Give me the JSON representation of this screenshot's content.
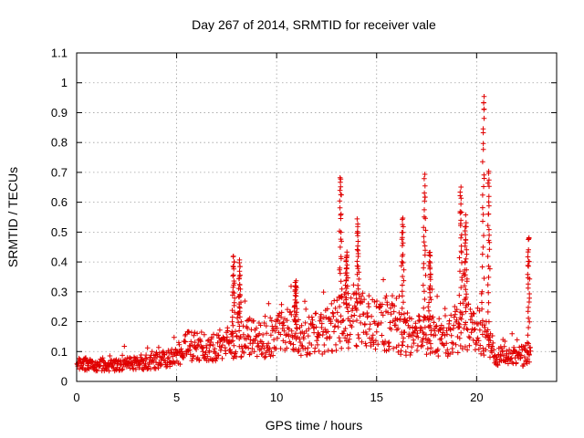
{
  "chart_data": {
    "type": "scatter",
    "title": "Day 267 of 2014, SRMTID for receiver vale",
    "xlabel": "GPS time / hours",
    "ylabel": "SRMTID / TECUs",
    "xlim": [
      0,
      24
    ],
    "ylim": [
      0,
      1.1
    ],
    "xticks": [
      0,
      5,
      10,
      15,
      20
    ],
    "xtick_labels": [
      "0",
      "5",
      "10",
      "15",
      "20"
    ],
    "yticks": [
      0,
      0.1,
      0.2,
      0.3,
      0.4,
      0.5,
      0.6,
      0.7,
      0.8,
      0.9,
      1,
      1.1
    ],
    "ytick_labels": [
      "0",
      "0.1",
      "0.2",
      "0.3",
      "0.4",
      "0.5",
      "0.6",
      "0.7",
      "0.8",
      "0.9",
      "1",
      "1.1"
    ],
    "grid": true,
    "marker": "plus",
    "marker_color": "#e00000",
    "series": [
      {
        "name": "SRMTID",
        "baseline_profile": [
          [
            0.0,
            0.06
          ],
          [
            1.0,
            0.055
          ],
          [
            2.0,
            0.055
          ],
          [
            3.0,
            0.06
          ],
          [
            4.0,
            0.07
          ],
          [
            5.0,
            0.08
          ],
          [
            5.5,
            0.12
          ],
          [
            6.5,
            0.11
          ],
          [
            7.5,
            0.13
          ],
          [
            8.5,
            0.15
          ],
          [
            9.5,
            0.14
          ],
          [
            10.5,
            0.17
          ],
          [
            11.5,
            0.15
          ],
          [
            12.5,
            0.17
          ],
          [
            13.5,
            0.21
          ],
          [
            14.5,
            0.2
          ],
          [
            15.5,
            0.19
          ],
          [
            16.5,
            0.15
          ],
          [
            17.5,
            0.16
          ],
          [
            18.5,
            0.14
          ],
          [
            19.5,
            0.2
          ],
          [
            20.5,
            0.15
          ],
          [
            21.0,
            0.09
          ],
          [
            22.0,
            0.08
          ],
          [
            22.7,
            0.09
          ]
        ],
        "spikes": [
          {
            "t": 7.85,
            "peak": 0.43
          },
          {
            "t": 8.15,
            "peak": 0.41
          },
          {
            "t": 10.95,
            "peak": 0.34
          },
          {
            "t": 13.2,
            "peak": 0.72
          },
          {
            "t": 13.5,
            "peak": 0.44
          },
          {
            "t": 14.05,
            "peak": 0.55
          },
          {
            "t": 16.3,
            "peak": 0.57
          },
          {
            "t": 17.4,
            "peak": 0.7
          },
          {
            "t": 17.65,
            "peak": 0.45
          },
          {
            "t": 19.2,
            "peak": 0.67
          },
          {
            "t": 19.45,
            "peak": 0.56
          },
          {
            "t": 20.35,
            "peak": 1.01
          },
          {
            "t": 20.6,
            "peak": 0.73
          },
          {
            "t": 22.6,
            "peak": 0.5
          }
        ]
      }
    ]
  }
}
